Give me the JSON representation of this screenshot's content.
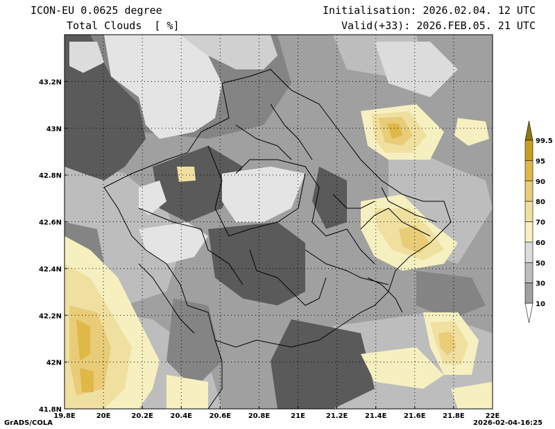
{
  "header": {
    "model": "ICON-EU 0.0625 degree",
    "variable": "Total Clouds  [ %]",
    "init_label": "Initialisation: 2026.02.04. 12 UTC",
    "valid_label": "Valid(+33): 2026.FEB.05. 21 UTC"
  },
  "footer": {
    "left": "GrADS/COLA",
    "right": "2026-02-04-16:25"
  },
  "map": {
    "lon_ticks": [
      "19.8E",
      "20E",
      "20.2E",
      "20.4E",
      "20.6E",
      "20.8E",
      "21E",
      "21.2E",
      "21.4E",
      "21.6E",
      "21.8E",
      "22E"
    ],
    "lat_ticks": [
      "43.2N",
      "43N",
      "42.8N",
      "42.6N",
      "42.4N",
      "42.2N",
      "42N",
      "41.8N"
    ],
    "lon_range": [
      19.8,
      22.0
    ],
    "lat_range": [
      41.8,
      43.4
    ]
  },
  "legend": {
    "levels": [
      "99.5",
      "95",
      "90",
      "80",
      "70",
      "60",
      "50",
      "30",
      "10"
    ],
    "colors": [
      "#c8a020",
      "#e0b848",
      "#e8cc78",
      "#f0e0a0",
      "#f6f0c0",
      "#dcdcdc",
      "#bdbdbd",
      "#a0a0a0",
      "#848484",
      "#5a5a5a",
      "#ffffff"
    ]
  }
}
